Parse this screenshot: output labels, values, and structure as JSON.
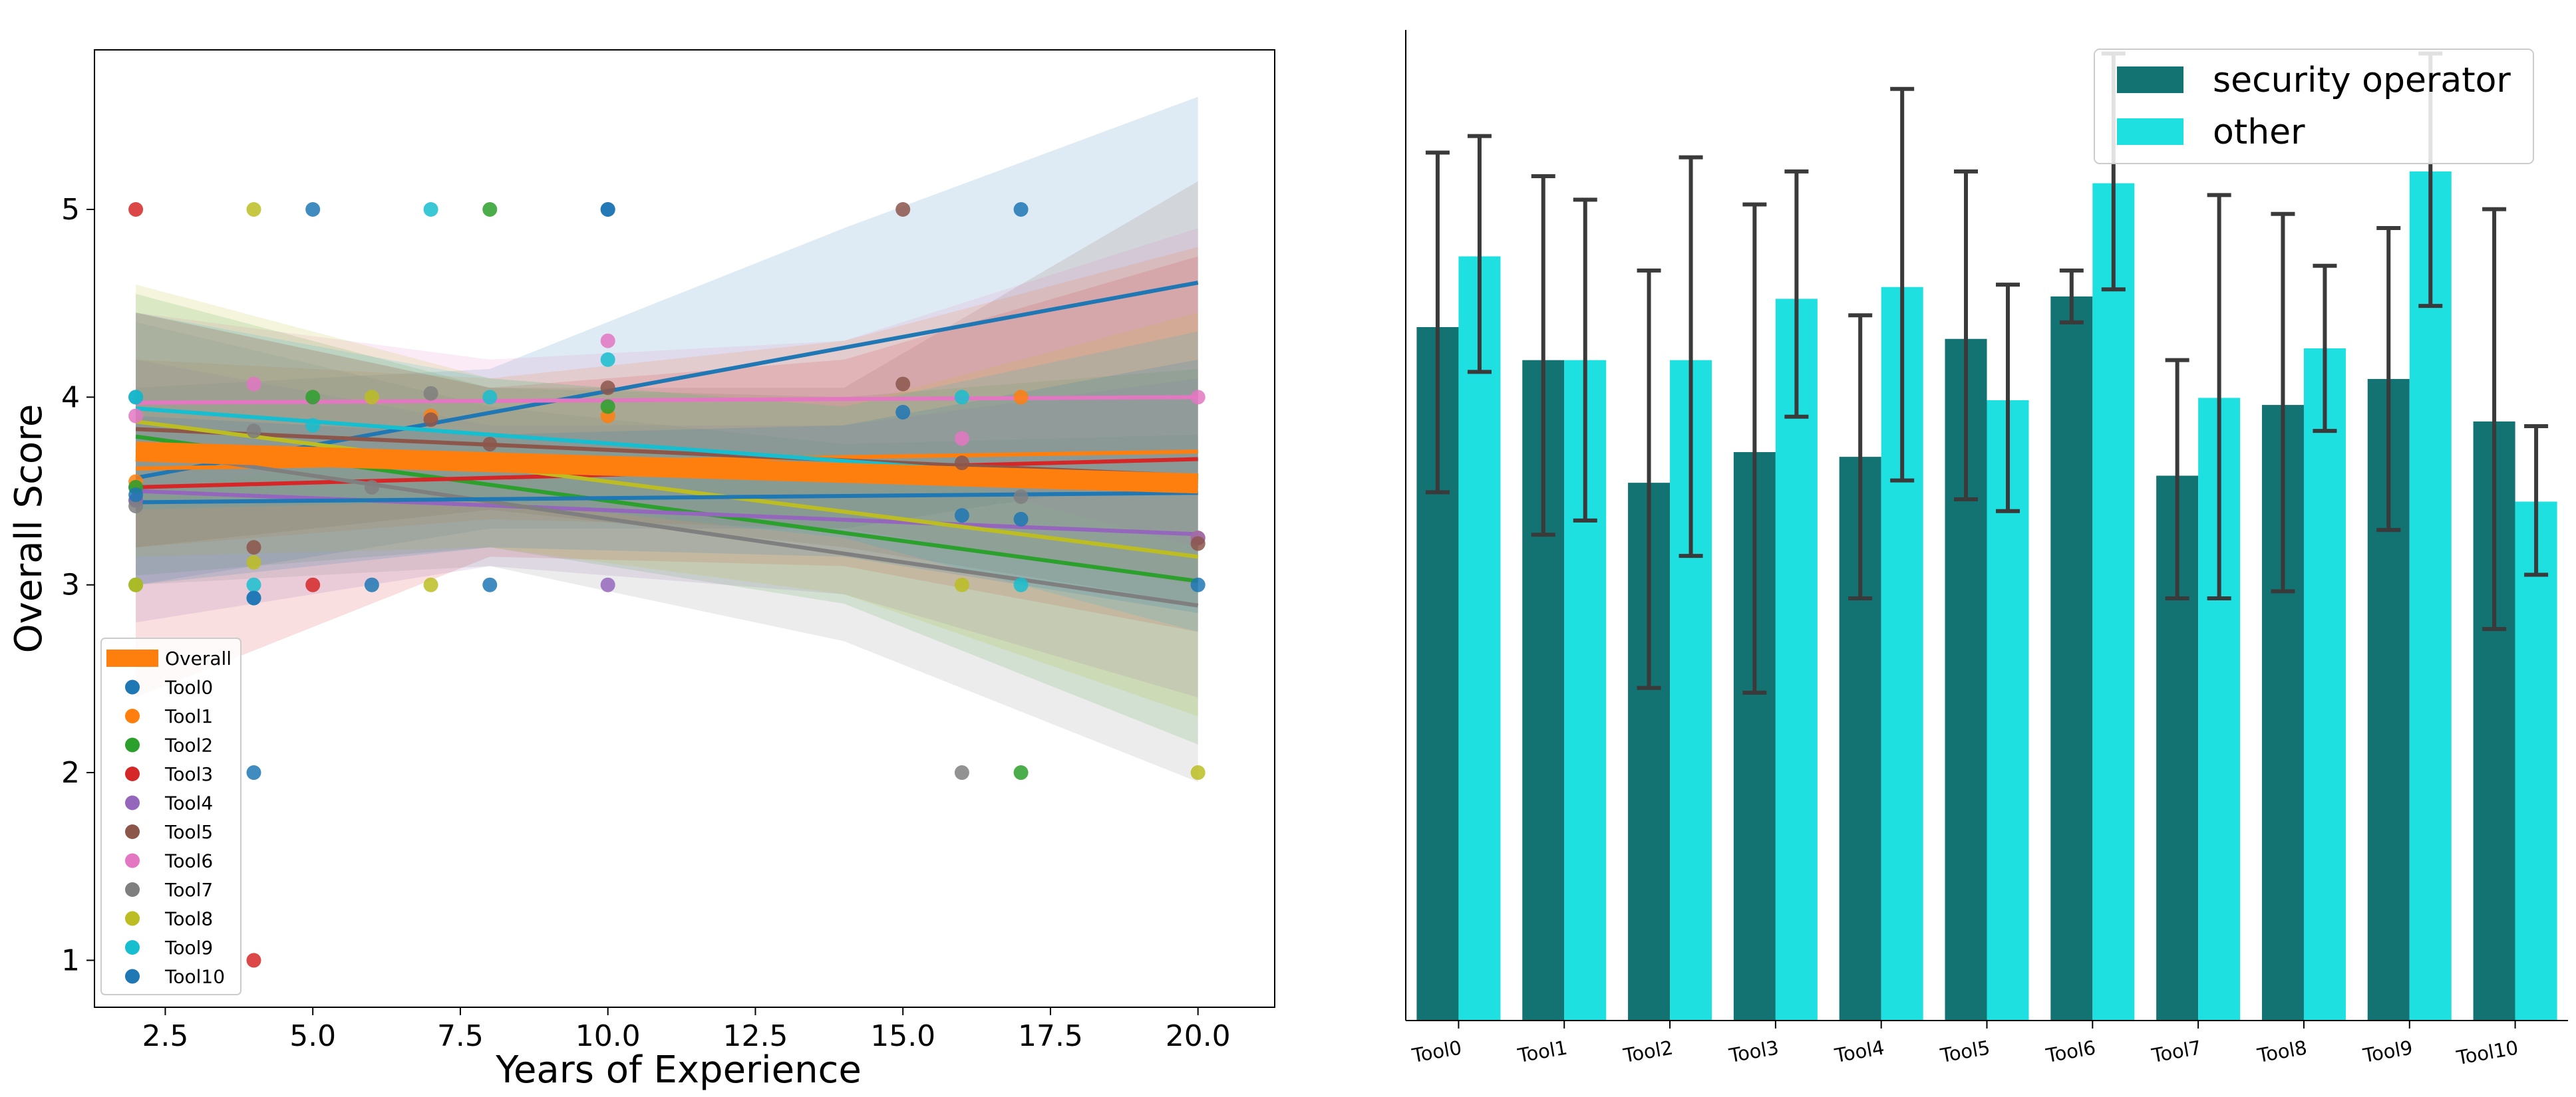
{
  "chart_data": [
    {
      "type": "scatter",
      "title": "",
      "xlabel": "Years of Experience",
      "ylabel": "Overall Score",
      "xlim": [
        1.3,
        21.3
      ],
      "ylim": [
        0.75,
        5.85
      ],
      "xticks": [
        2.5,
        5.0,
        7.5,
        10.0,
        12.5,
        15.0,
        17.5,
        20.0
      ],
      "xtick_labels": [
        "2.5",
        "5.0",
        "7.5",
        "10.0",
        "12.5",
        "15.0",
        "17.5",
        "20.0"
      ],
      "yticks": [
        1,
        2,
        3,
        4,
        5
      ],
      "ytick_labels": [
        "1",
        "2",
        "3",
        "4",
        "5"
      ],
      "legend_position": "lower-left",
      "overall": {
        "name": "Overall",
        "color": "#ff7f0e",
        "line": [
          [
            2,
            3.71
          ],
          [
            20,
            3.54
          ]
        ]
      },
      "series": [
        {
          "name": "Tool0",
          "color": "#1f77b4",
          "line": [
            [
              2,
              3.57
            ],
            [
              20,
              4.61
            ]
          ],
          "ci": [
            [
              2,
              3.0,
              4.05
            ],
            [
              8,
              3.3,
              4.15
            ],
            [
              14,
              3.3,
              4.9
            ],
            [
              20,
              3.6,
              5.6
            ]
          ],
          "points": [
            [
              2,
              3.52
            ],
            [
              2,
              3.45
            ],
            [
              2,
              4.0
            ],
            [
              4,
              2.0
            ],
            [
              4,
              2.93
            ],
            [
              5,
              5.0
            ],
            [
              6,
              3.0
            ],
            [
              8,
              3.0
            ],
            [
              10,
              5.0
            ],
            [
              15,
              3.92
            ],
            [
              16,
              3.37
            ],
            [
              17,
              5.0
            ],
            [
              17,
              3.35
            ],
            [
              20,
              3.0
            ]
          ]
        },
        {
          "name": "Tool1",
          "color": "#ff7f0e",
          "line": [
            [
              2,
              3.62
            ],
            [
              20,
              3.71
            ]
          ],
          "ci": [
            [
              2,
              3.2,
              4.2
            ],
            [
              8,
              3.35,
              4.1
            ],
            [
              14,
              3.3,
              4.3
            ],
            [
              20,
              3.0,
              4.8
            ]
          ],
          "points": [
            [
              2,
              3.55
            ],
            [
              7,
              3.9
            ],
            [
              10,
              3.9
            ],
            [
              17,
              4.0
            ],
            [
              20,
              3.25
            ]
          ]
        },
        {
          "name": "Tool2",
          "color": "#2ca02c",
          "line": [
            [
              2,
              3.79
            ],
            [
              20,
              3.02
            ]
          ],
          "ci": [
            [
              2,
              3.05,
              4.55
            ],
            [
              8,
              3.2,
              4.05
            ],
            [
              14,
              2.9,
              4.0
            ],
            [
              20,
              2.15,
              4.15
            ]
          ],
          "points": [
            [
              2,
              3.52
            ],
            [
              2,
              3.0
            ],
            [
              5,
              4.0
            ],
            [
              8,
              5.0
            ],
            [
              10,
              3.95
            ],
            [
              17,
              2.0
            ]
          ]
        },
        {
          "name": "Tool3",
          "color": "#d62728",
          "line": [
            [
              2,
              3.52
            ],
            [
              20,
              3.67
            ]
          ],
          "ci": [
            [
              2,
              2.4,
              4.45
            ],
            [
              8,
              3.15,
              4.05
            ],
            [
              14,
              3.1,
              4.2
            ],
            [
              20,
              2.75,
              4.75
            ]
          ],
          "points": [
            [
              2,
              5.0
            ],
            [
              4,
              1.0
            ],
            [
              5,
              3.0
            ]
          ]
        },
        {
          "name": "Tool4",
          "color": "#9467bd",
          "line": [
            [
              2,
              3.5
            ],
            [
              20,
              3.27
            ]
          ],
          "ci": [
            [
              2,
              2.8,
              4.2
            ],
            [
              8,
              3.1,
              3.85
            ],
            [
              14,
              2.95,
              3.85
            ],
            [
              20,
              2.4,
              4.1
            ]
          ],
          "points": [
            [
              2,
              3.45
            ],
            [
              10,
              3.0
            ],
            [
              20,
              3.25
            ]
          ]
        },
        {
          "name": "Tool5",
          "color": "#8c564b",
          "line": [
            [
              2,
              3.83
            ],
            [
              20,
              3.58
            ]
          ],
          "ci": [
            [
              2,
              3.2,
              4.45
            ],
            [
              8,
              3.4,
              4.05
            ],
            [
              14,
              3.2,
              4.05
            ],
            [
              20,
              2.9,
              5.15
            ]
          ],
          "points": [
            [
              4,
              3.2
            ],
            [
              7,
              3.88
            ],
            [
              8,
              3.75
            ],
            [
              10,
              4.05
            ],
            [
              15,
              5.0
            ],
            [
              15,
              4.07
            ],
            [
              16,
              3.65
            ],
            [
              20,
              3.22
            ]
          ]
        },
        {
          "name": "Tool6",
          "color": "#e377c2",
          "line": [
            [
              2,
              3.97
            ],
            [
              20,
              4.0
            ]
          ],
          "ci": [
            [
              2,
              3.5,
              4.45
            ],
            [
              8,
              3.75,
              4.2
            ],
            [
              14,
              3.7,
              4.3
            ],
            [
              20,
              3.2,
              4.9
            ]
          ],
          "points": [
            [
              2,
              3.9
            ],
            [
              4,
              4.07
            ],
            [
              10,
              4.3
            ],
            [
              16,
              3.78
            ],
            [
              20,
              4.0
            ]
          ]
        },
        {
          "name": "Tool7",
          "color": "#7f7f7f",
          "line": [
            [
              2,
              3.72
            ],
            [
              20,
              2.89
            ]
          ],
          "ci": [
            [
              2,
              3.0,
              4.4
            ],
            [
              8,
              3.1,
              3.95
            ],
            [
              14,
              2.7,
              3.75
            ],
            [
              20,
              1.95,
              3.8
            ]
          ],
          "points": [
            [
              2,
              3.42
            ],
            [
              4,
              3.82
            ],
            [
              6,
              3.52
            ],
            [
              7,
              4.02
            ],
            [
              16,
              2.0
            ],
            [
              17,
              3.47
            ]
          ]
        },
        {
          "name": "Tool8",
          "color": "#bcbd22",
          "line": [
            [
              2,
              3.87
            ],
            [
              20,
              3.15
            ]
          ],
          "ci": [
            [
              2,
              3.15,
              4.6
            ],
            [
              8,
              3.2,
              4.1
            ],
            [
              14,
              2.95,
              3.95
            ],
            [
              20,
              2.3,
              4.45
            ]
          ],
          "points": [
            [
              2,
              3.0
            ],
            [
              4,
              5.0
            ],
            [
              4,
              3.12
            ],
            [
              6,
              4.0
            ],
            [
              7,
              3.0
            ],
            [
              16,
              3.0
            ],
            [
              20,
              2.0
            ]
          ]
        },
        {
          "name": "Tool9",
          "color": "#17becf",
          "line": [
            [
              2,
              3.94
            ],
            [
              20,
              3.52
            ]
          ],
          "ci": [
            [
              2,
              3.4,
              4.45
            ],
            [
              8,
              3.45,
              4.1
            ],
            [
              14,
              3.25,
              3.95
            ],
            [
              20,
              2.75,
              4.35
            ]
          ],
          "points": [
            [
              2,
              4.0
            ],
            [
              4,
              3.0
            ],
            [
              5,
              3.85
            ],
            [
              7,
              5.0
            ],
            [
              8,
              4.0
            ],
            [
              10,
              4.2
            ],
            [
              16,
              4.0
            ],
            [
              17,
              3.0
            ]
          ]
        },
        {
          "name": "Tool10",
          "color": "#1f77b4",
          "line": [
            [
              2,
              3.44
            ],
            [
              20,
              3.49
            ]
          ],
          "ci": [
            [
              2,
              3.0,
              3.9
            ],
            [
              8,
              3.2,
              3.8
            ],
            [
              14,
              3.15,
              3.85
            ],
            [
              20,
              2.85,
              4.2
            ]
          ],
          "points": [
            [
              2,
              3.48
            ],
            [
              4,
              2.93
            ],
            [
              10,
              5.0
            ]
          ]
        }
      ]
    },
    {
      "type": "bar",
      "title": "",
      "xlabel": "",
      "ylabel": "",
      "categories": [
        "Tool0",
        "Tool1",
        "Tool2",
        "Tool3",
        "Tool4",
        "Tool5",
        "Tool6",
        "Tool7",
        "Tool8",
        "Tool9",
        "Tool10"
      ],
      "ylim": [
        0,
        4.2
      ],
      "legend_position": "top-right",
      "series": [
        {
          "name": "security operator",
          "color": "#137272",
          "values": [
            2.94,
            2.8,
            2.28,
            2.41,
            2.39,
            2.89,
            3.07,
            2.31,
            2.61,
            2.72,
            2.54
          ],
          "err_low": [
            2.24,
            2.06,
            1.41,
            1.39,
            1.79,
            2.21,
            2.96,
            1.79,
            1.82,
            2.08,
            1.66
          ],
          "err_high": [
            3.68,
            3.58,
            3.18,
            3.46,
            2.99,
            3.6,
            3.18,
            2.8,
            3.42,
            3.36,
            3.44
          ]
        },
        {
          "name": "other",
          "color": "#1ee0e0",
          "values": [
            3.24,
            2.8,
            2.8,
            3.06,
            3.11,
            2.63,
            3.55,
            2.64,
            2.85,
            3.6,
            2.2
          ],
          "err_low": [
            2.75,
            2.12,
            1.97,
            2.56,
            2.29,
            2.16,
            3.1,
            1.79,
            2.5,
            3.03,
            1.89
          ],
          "err_high": [
            3.75,
            3.48,
            3.66,
            3.6,
            3.95,
            3.12,
            4.1,
            3.5,
            3.2,
            4.1,
            2.52
          ]
        }
      ]
    }
  ]
}
